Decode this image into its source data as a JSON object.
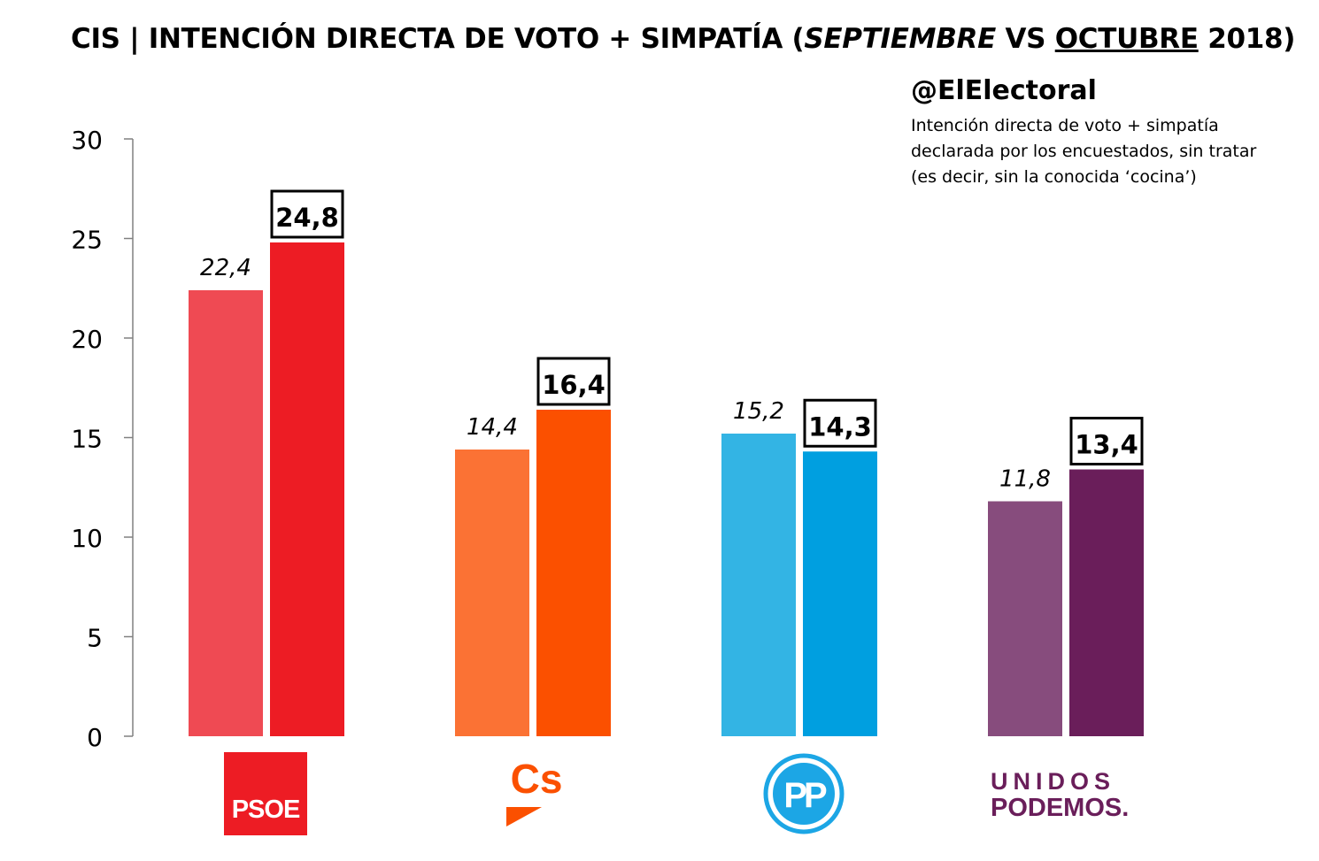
{
  "title": {
    "part1": "CIS | INTENCIÓN DIRECTA DE VOTO + SIMPATÍA (",
    "sept": "SEPTIEMBRE",
    "vs": " VS ",
    "oct": "OCTUBRE",
    "year": " 2018)"
  },
  "source": "@ElElectoral",
  "note": {
    "line1": "Intención directa de voto + simpatía",
    "line2": "declarada por los encuestados, sin tratar",
    "line3": "(es decir, sin la conocida ‘cocina’)"
  },
  "logos": {
    "psoe": "PSOE",
    "cs": "Cs",
    "pp": "PP",
    "unidos": "UNIDOS",
    "podemos": "PODEMOS."
  },
  "chart_data": {
    "type": "bar",
    "categories": [
      "PSOE",
      "Cs",
      "PP",
      "Unidos Podemos"
    ],
    "series": [
      {
        "name": "SEPTIEMBRE",
        "values": [
          22.4,
          14.4,
          15.2,
          11.8
        ],
        "labels": [
          "22,4",
          "14,4",
          "15,2",
          "11,8"
        ],
        "colors": [
          "#ef4a53",
          "#fb7234",
          "#33b4e4",
          "#874c7d"
        ]
      },
      {
        "name": "OCTUBRE",
        "values": [
          24.8,
          16.4,
          14.3,
          13.4
        ],
        "labels": [
          "24,8",
          "16,4",
          "14,3",
          "13,4"
        ],
        "colors": [
          "#ed1c24",
          "#fb5000",
          "#009fe0",
          "#6a1e5a"
        ]
      }
    ],
    "ylim": [
      0,
      30
    ],
    "yticks": [
      0,
      5,
      10,
      15,
      20,
      25,
      30
    ],
    "grid": false
  }
}
